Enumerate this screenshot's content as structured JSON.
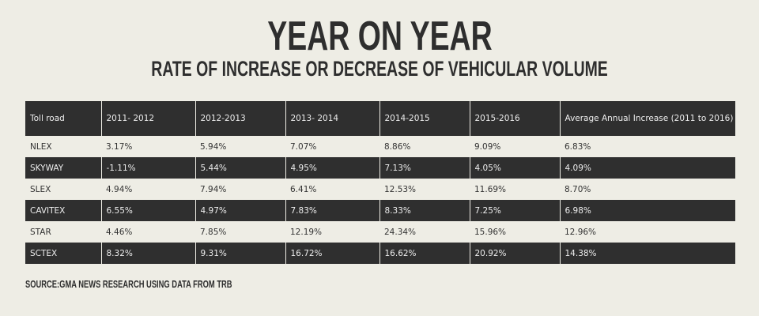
{
  "title": "YEAR ON YEAR",
  "subtitle": "RATE OF INCREASE OR DECREASE OF VEHICULAR VOLUME",
  "source": "SOURCE:GMA NEWS RESEARCH USING DATA FROM TRB",
  "colors": {
    "background": "#eeede5",
    "dark_row": "#2f2f2f",
    "text": "#2e2e2e"
  },
  "chart_data": {
    "type": "table",
    "title": "YEAR ON YEAR",
    "subtitle": "RATE OF INCREASE OR DECREASE OF VEHICULAR VOLUME",
    "columns": [
      "Toll road",
      "2011- 2012",
      "2012-2013",
      "2013- 2014",
      "2014-2015",
      "2015-2016",
      "Average Annual Increase (2011 to 2016)"
    ],
    "rows": [
      [
        "NLEX",
        "3.17%",
        "5.94%",
        "7.07%",
        "8.86%",
        "9.09%",
        "6.83%"
      ],
      [
        "SKYWAY",
        "-1.11%",
        "5.44%",
        "4.95%",
        "7.13%",
        "4.05%",
        "4.09%"
      ],
      [
        "SLEX",
        "4.94%",
        "7.94%",
        "6.41%",
        "12.53%",
        "11.69%",
        "8.70%"
      ],
      [
        "CAVITEX",
        "6.55%",
        "4.97%",
        "7.83%",
        "8.33%",
        "7.25%",
        "6.98%"
      ],
      [
        "STAR",
        "4.46%",
        "7.85%",
        "12.19%",
        "24.34%",
        "15.96%",
        "12.96%"
      ],
      [
        "SCTEX",
        "8.32%",
        "9.31%",
        "16.72%",
        "16.62%",
        "20.92%",
        "14.38%"
      ]
    ]
  }
}
